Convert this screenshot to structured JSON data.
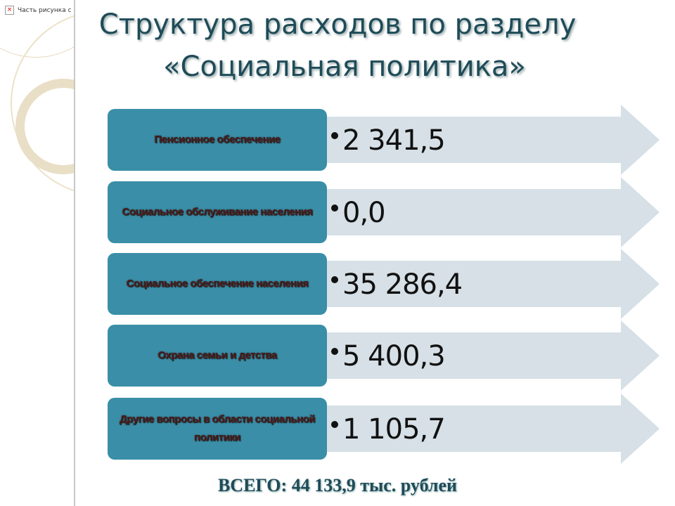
{
  "sidebar": {
    "broken_image_text": "Часть рисунка с"
  },
  "title": {
    "line1": "Структура расходов по разделу",
    "line2": "«Социальная политика»"
  },
  "items": [
    {
      "label": "Пенсионное обеспечение",
      "value": "2 341,5"
    },
    {
      "label": "Социальное обслуживание населения",
      "value": "0,0"
    },
    {
      "label": "Социальное обеспечение населения",
      "value": "35 286,4"
    },
    {
      "label": "Охрана семьи и детства",
      "value": "5 400,3"
    },
    {
      "label": "Другие вопросы в области социальной политики",
      "value": "1 105,7"
    }
  ],
  "total": "ВСЕГО: 44 133,9 тыс. рублей",
  "colors": {
    "box": "#3a8ea7",
    "arrow": "#d6e0e6",
    "title": "#1e4b58"
  }
}
